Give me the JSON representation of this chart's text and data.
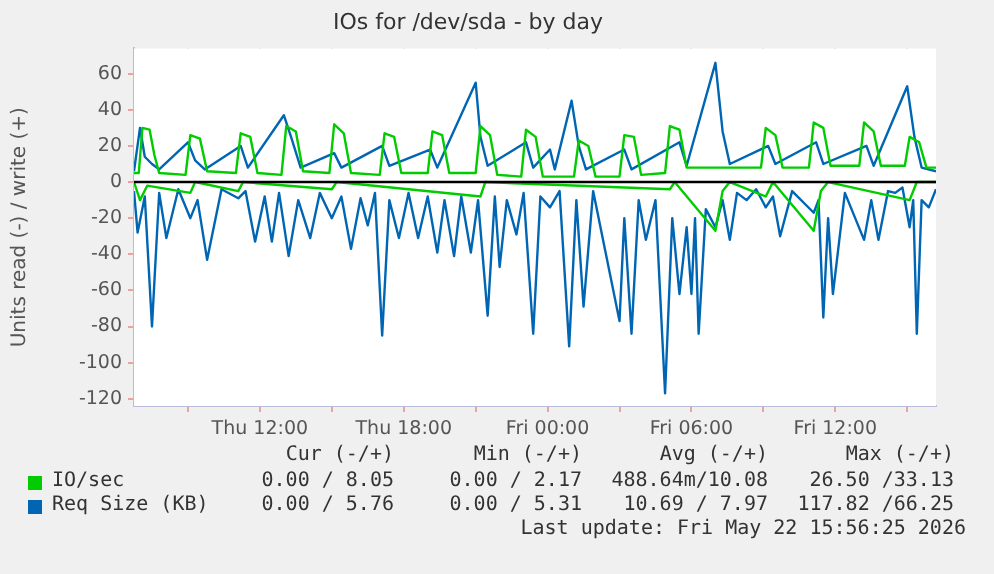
{
  "chart_data": {
    "type": "line",
    "title": "IOs for /dev/sda - by day",
    "ylabel": "Units read (-) / write (+)",
    "xlim": [
      "2026-05-21T06:45",
      "2026-05-22T16:12"
    ],
    "ylim": [
      -124,
      74
    ],
    "xticks": [
      {
        "value": "2026-05-21T09:00",
        "label": null
      },
      {
        "value": "2026-05-21T12:00",
        "label": "Thu 12:00"
      },
      {
        "value": "2026-05-21T15:00",
        "label": null
      },
      {
        "value": "2026-05-21T18:00",
        "label": "Thu 18:00"
      },
      {
        "value": "2026-05-21T21:00",
        "label": null
      },
      {
        "value": "2026-05-22T00:00",
        "label": "Fri 00:00"
      },
      {
        "value": "2026-05-22T03:00",
        "label": null
      },
      {
        "value": "2026-05-22T06:00",
        "label": "Fri 06:00"
      },
      {
        "value": "2026-05-22T09:00",
        "label": null
      },
      {
        "value": "2026-05-22T12:00",
        "label": "Fri 12:00"
      },
      {
        "value": "2026-05-22T15:00",
        "label": null
      }
    ],
    "yticks": [
      -120,
      -100,
      -80,
      -60,
      -40,
      -20,
      0,
      20,
      40,
      60
    ],
    "grid": true,
    "legend": "bottom",
    "marker": "none",
    "line_style": "solid",
    "ref_lines": [
      {
        "axis": "y",
        "value": 0,
        "color": "#000000"
      }
    ],
    "series": [
      {
        "name": "IO/sec",
        "color": "#00cc00",
        "x": [
          "2026-05-21T06:45",
          "2026-05-21T06:57",
          "2026-05-21T07:06",
          "2026-05-21T07:24",
          "2026-05-21T07:36",
          "2026-05-21T07:48",
          "2026-05-21T08:54",
          "2026-05-21T09:06",
          "2026-05-21T09:30",
          "2026-05-21T09:48",
          "2026-05-21T11:00",
          "2026-05-21T11:12",
          "2026-05-21T11:36",
          "2026-05-21T11:54",
          "2026-05-21T12:54",
          "2026-05-21T13:06",
          "2026-05-21T13:30",
          "2026-05-21T13:48",
          "2026-05-21T14:54",
          "2026-05-21T15:06",
          "2026-05-21T15:30",
          "2026-05-21T15:48",
          "2026-05-21T17:00",
          "2026-05-21T17:12",
          "2026-05-21T17:36",
          "2026-05-21T17:54",
          "2026-05-21T19:00",
          "2026-05-21T19:12",
          "2026-05-21T19:36",
          "2026-05-21T19:54",
          "2026-05-21T21:00",
          "2026-05-21T21:12",
          "2026-05-21T21:36",
          "2026-05-21T21:54",
          "2026-05-21T22:54",
          "2026-05-21T23:06",
          "2026-05-21T23:30",
          "2026-05-21T23:48",
          "2026-05-22T01:06",
          "2026-05-22T01:18",
          "2026-05-22T01:42",
          "2026-05-22T02:00",
          "2026-05-22T03:00",
          "2026-05-22T03:12",
          "2026-05-22T03:36",
          "2026-05-22T03:54",
          "2026-05-22T04:54",
          "2026-05-22T05:06",
          "2026-05-22T05:30",
          "2026-05-22T05:48",
          "2026-05-22T08:54",
          "2026-05-22T09:06",
          "2026-05-22T09:30",
          "2026-05-22T09:48",
          "2026-05-22T10:54",
          "2026-05-22T11:06",
          "2026-05-22T11:30",
          "2026-05-22T11:48",
          "2026-05-22T13:00",
          "2026-05-22T13:12",
          "2026-05-22T13:36",
          "2026-05-22T13:54",
          "2026-05-22T14:54",
          "2026-05-22T15:06",
          "2026-05-22T15:30",
          "2026-05-22T15:48",
          "2026-05-22T16:12"
        ],
        "values": [
          5,
          5,
          30,
          29,
          15,
          5,
          4,
          26,
          24,
          6,
          5,
          27,
          25,
          5,
          4,
          31,
          28,
          6,
          5,
          32,
          27,
          5,
          4,
          27,
          25,
          5,
          5,
          28,
          26,
          5,
          5,
          31,
          26,
          4,
          3,
          29,
          25,
          3,
          3,
          23,
          20,
          3,
          3,
          26,
          25,
          4,
          5,
          31,
          29,
          8,
          8,
          30,
          26,
          8,
          8,
          33,
          30,
          9,
          9,
          33,
          28,
          9,
          9,
          25,
          22,
          8,
          8
        ]
      },
      {
        "name": "Req Size (KB)",
        "color": "#0066b3",
        "x": [
          "2026-05-21T06:45",
          "2026-05-21T07:00",
          "2026-05-21T07:12",
          "2026-05-21T07:30",
          "2026-05-21T07:48",
          "2026-05-21T09:00",
          "2026-05-21T09:18",
          "2026-05-21T09:42",
          "2026-05-21T11:12",
          "2026-05-21T11:30",
          "2026-05-21T13:00",
          "2026-05-21T13:18",
          "2026-05-21T13:42",
          "2026-05-21T15:06",
          "2026-05-21T15:24",
          "2026-05-21T17:06",
          "2026-05-21T17:24",
          "2026-05-21T19:06",
          "2026-05-21T19:24",
          "2026-05-21T21:00",
          "2026-05-21T21:12",
          "2026-05-21T21:30",
          "2026-05-21T23:06",
          "2026-05-21T23:24",
          "2026-05-22T00:06",
          "2026-05-22T00:18",
          "2026-05-22T01:00",
          "2026-05-22T01:18",
          "2026-05-22T01:36",
          "2026-05-22T03:12",
          "2026-05-22T03:30",
          "2026-05-22T05:30",
          "2026-05-22T05:48",
          "2026-05-22T07:00",
          "2026-05-22T07:18",
          "2026-05-22T07:36",
          "2026-05-22T09:12",
          "2026-05-22T09:30",
          "2026-05-22T11:12",
          "2026-05-22T11:30",
          "2026-05-22T13:18",
          "2026-05-22T13:36",
          "2026-05-22T15:00",
          "2026-05-22T15:18",
          "2026-05-22T15:36",
          "2026-05-22T16:12"
        ],
        "values": [
          6,
          30,
          14,
          10,
          7,
          22,
          12,
          7,
          20,
          8,
          37,
          25,
          8,
          16,
          8,
          20,
          9,
          18,
          8,
          55,
          25,
          9,
          22,
          8,
          18,
          7,
          45,
          20,
          7,
          18,
          7,
          22,
          9,
          66,
          28,
          10,
          20,
          10,
          22,
          10,
          20,
          9,
          53,
          25,
          8,
          6
        ]
      },
      {
        "color": "#00cc00",
        "x": [
          "2026-05-21T06:45",
          "2026-05-21T07:00",
          "2026-05-21T07:18",
          "2026-05-21T09:06",
          "2026-05-21T09:18",
          "2026-05-21T11:06",
          "2026-05-21T11:18",
          "2026-05-21T15:00",
          "2026-05-21T15:12",
          "2026-05-21T21:12",
          "2026-05-21T21:24",
          "2026-05-22T05:06",
          "2026-05-22T05:18",
          "2026-05-22T07:00",
          "2026-05-22T07:18",
          "2026-05-22T07:36",
          "2026-05-22T09:06",
          "2026-05-22T09:24",
          "2026-05-22T11:06",
          "2026-05-22T11:24",
          "2026-05-22T11:42",
          "2026-05-22T15:06",
          "2026-05-22T15:24",
          "2026-05-22T16:12"
        ],
        "values": [
          0,
          -10,
          -2,
          -6,
          0,
          -5,
          0,
          -4,
          0,
          -8,
          0,
          -4,
          0,
          -27,
          -5,
          0,
          -8,
          0,
          -27,
          -5,
          0,
          -10,
          0,
          0
        ]
      },
      {
        "color": "#0066b3",
        "x": [
          "2026-05-21T06:45",
          "2026-05-21T06:54",
          "2026-05-21T07:12",
          "2026-05-21T07:30",
          "2026-05-21T07:48",
          "2026-05-21T08:06",
          "2026-05-21T08:36",
          "2026-05-21T09:06",
          "2026-05-21T09:24",
          "2026-05-21T09:48",
          "2026-05-21T10:24",
          "2026-05-21T11:06",
          "2026-05-21T11:24",
          "2026-05-21T11:48",
          "2026-05-21T12:12",
          "2026-05-21T12:30",
          "2026-05-21T12:48",
          "2026-05-21T13:12",
          "2026-05-21T13:36",
          "2026-05-21T14:06",
          "2026-05-21T14:30",
          "2026-05-21T15:00",
          "2026-05-21T15:24",
          "2026-05-21T15:48",
          "2026-05-21T16:12",
          "2026-05-21T16:30",
          "2026-05-21T16:48",
          "2026-05-21T17:06",
          "2026-05-21T17:24",
          "2026-05-21T17:48",
          "2026-05-21T18:12",
          "2026-05-21T18:36",
          "2026-05-21T19:00",
          "2026-05-21T19:24",
          "2026-05-21T19:42",
          "2026-05-21T20:06",
          "2026-05-21T20:24",
          "2026-05-21T20:48",
          "2026-05-21T21:06",
          "2026-05-21T21:30",
          "2026-05-21T21:48",
          "2026-05-21T22:00",
          "2026-05-21T22:18",
          "2026-05-21T22:42",
          "2026-05-21T23:00",
          "2026-05-21T23:24",
          "2026-05-21T23:42",
          "2026-05-22T00:06",
          "2026-05-22T00:30",
          "2026-05-22T00:54",
          "2026-05-22T01:12",
          "2026-05-22T01:30",
          "2026-05-22T01:54",
          "2026-05-22T03:00",
          "2026-05-22T03:12",
          "2026-05-22T03:30",
          "2026-05-22T03:48",
          "2026-05-22T04:06",
          "2026-05-22T04:30",
          "2026-05-22T04:54",
          "2026-05-22T05:12",
          "2026-05-22T05:30",
          "2026-05-22T05:48",
          "2026-05-22T06:00",
          "2026-05-22T06:09",
          "2026-05-22T06:18",
          "2026-05-22T06:36",
          "2026-05-22T07:00",
          "2026-05-22T07:18",
          "2026-05-22T07:36",
          "2026-05-22T07:54",
          "2026-05-22T08:18",
          "2026-05-22T08:42",
          "2026-05-22T09:06",
          "2026-05-22T09:24",
          "2026-05-22T09:42",
          "2026-05-22T10:12",
          "2026-05-22T11:06",
          "2026-05-22T11:18",
          "2026-05-22T11:30",
          "2026-05-22T11:42",
          "2026-05-22T11:54",
          "2026-05-22T12:24",
          "2026-05-22T13:12",
          "2026-05-22T13:30",
          "2026-05-22T13:48",
          "2026-05-22T14:12",
          "2026-05-22T14:30",
          "2026-05-22T14:48",
          "2026-05-22T15:06",
          "2026-05-22T15:15",
          "2026-05-22T15:24",
          "2026-05-22T15:36",
          "2026-05-22T15:54",
          "2026-05-22T16:12"
        ],
        "values": [
          -5,
          -28,
          -8,
          -80,
          -6,
          -31,
          -4,
          -20,
          -10,
          -43,
          -4,
          -9,
          -5,
          -33,
          -8,
          -33,
          -6,
          -41,
          -10,
          -31,
          -6,
          -20,
          -8,
          -37,
          -9,
          -24,
          -6,
          -85,
          -10,
          -31,
          -6,
          -31,
          -8,
          -39,
          -10,
          -41,
          -8,
          -39,
          -10,
          -74,
          -8,
          -47,
          -10,
          -29,
          -6,
          -84,
          -8,
          -14,
          -5,
          -91,
          -10,
          -69,
          -5,
          -77,
          -20,
          -84,
          -10,
          -32,
          -10,
          -117,
          -20,
          -62,
          -25,
          -62,
          -20,
          -84,
          -15,
          -25,
          -10,
          -32,
          -6,
          -10,
          -4,
          -14,
          -8,
          -30,
          -5,
          -17,
          -10,
          -75,
          -20,
          -62,
          -6,
          -32,
          -10,
          -32,
          -5,
          -6,
          -3,
          -25,
          -10,
          -84,
          -10,
          -14,
          -4
        ]
      }
    ],
    "annotations": [
      "Cur (-/+)",
      "Min (-/+)",
      "Avg (-/+)",
      "Max (-/+)",
      "0.00 / 8.05",
      "0.00 / 2.17",
      "488.64m/10.08",
      "26.50 /33.13",
      "0.00 / 5.76",
      "0.00 / 5.31",
      "10.69 / 7.97",
      "117.82 /66.25",
      "Last update: Fri May 22 15:56:25 2026"
    ]
  }
}
